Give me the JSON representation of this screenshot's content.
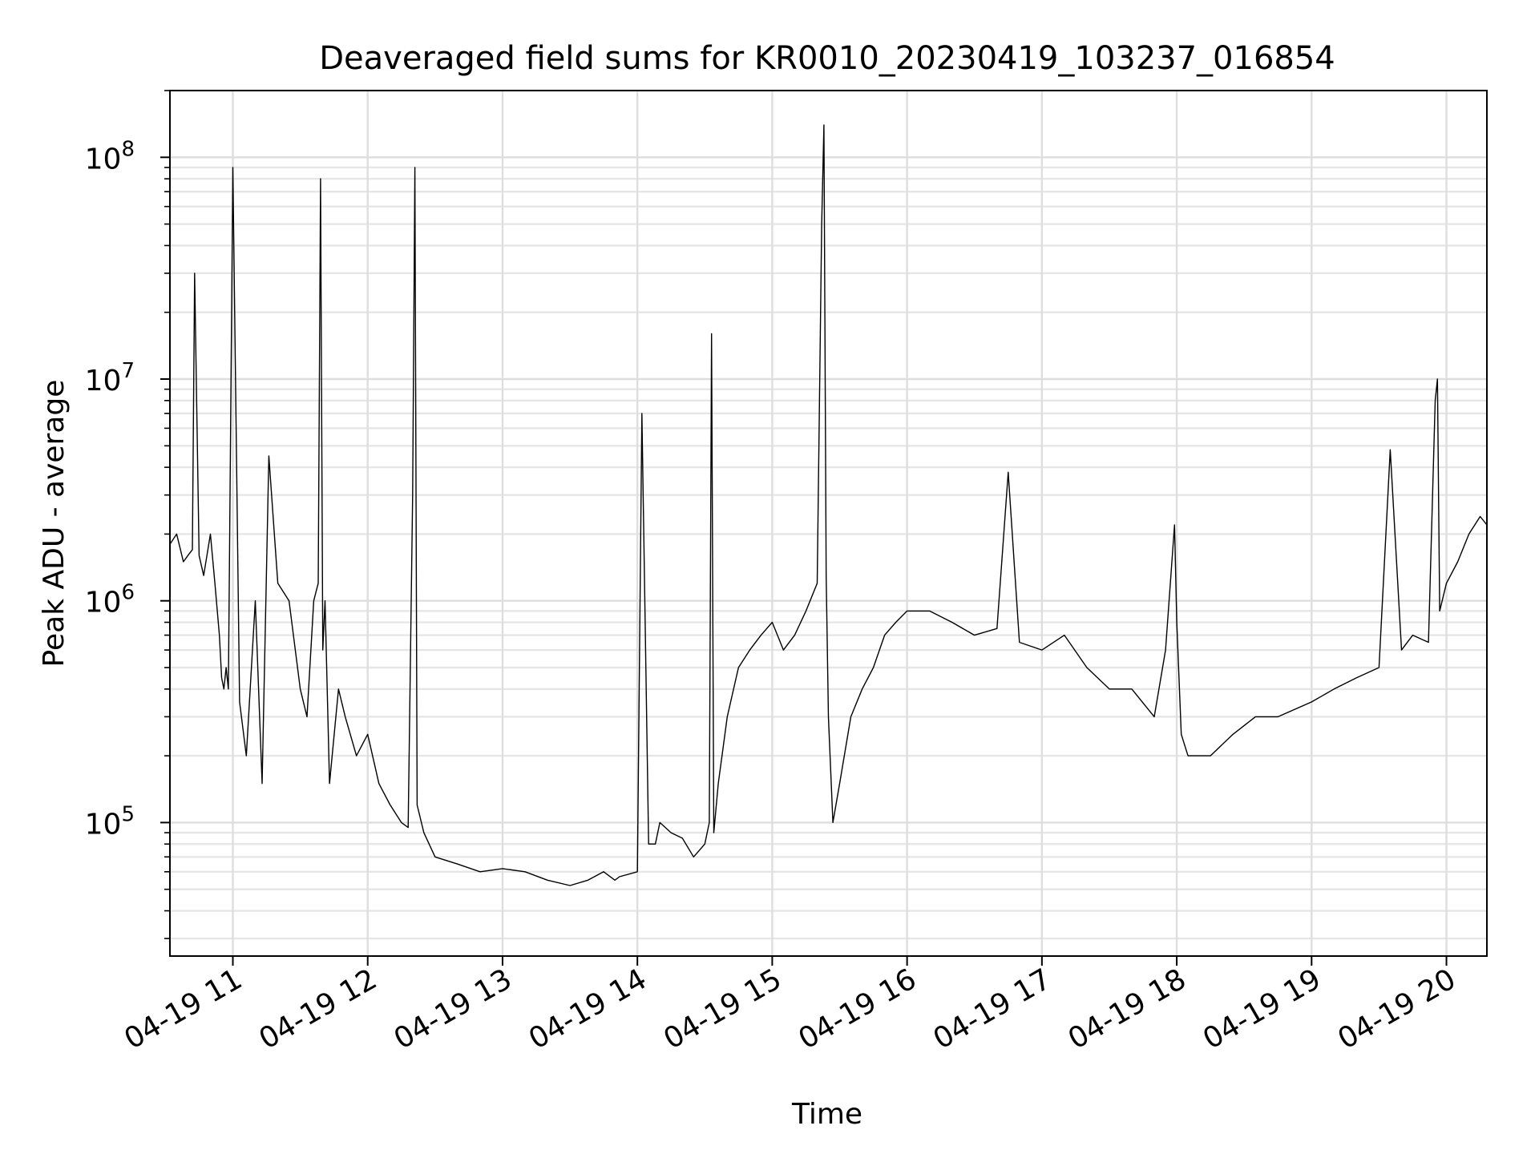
{
  "chart_data": {
    "type": "line",
    "title": "Deaveraged field sums for KR0010_20230419_103237_016854",
    "xlabel": "Time",
    "ylabel": "Peak ADU - average",
    "yscale": "log",
    "ylim": [
      25000,
      200000000
    ],
    "xlim": [
      "04-19 10:32",
      "04-19 20:18"
    ],
    "grid": true,
    "line_color": "#000000",
    "y_ticks": [
      {
        "base": "10",
        "exp": "5",
        "value": 100000
      },
      {
        "base": "10",
        "exp": "6",
        "value": 1000000
      },
      {
        "base": "10",
        "exp": "7",
        "value": 10000000
      },
      {
        "base": "10",
        "exp": "8",
        "value": 100000000
      }
    ],
    "x_ticks": [
      {
        "label": "04-19 11",
        "hour": 11
      },
      {
        "label": "04-19 12",
        "hour": 12
      },
      {
        "label": "04-19 13",
        "hour": 13
      },
      {
        "label": "04-19 14",
        "hour": 14
      },
      {
        "label": "04-19 15",
        "hour": 15
      },
      {
        "label": "04-19 16",
        "hour": 16
      },
      {
        "label": "04-19 17",
        "hour": 17
      },
      {
        "label": "04-19 18",
        "hour": 18
      },
      {
        "label": "04-19 19",
        "hour": 19
      },
      {
        "label": "04-19 20",
        "hour": 20
      }
    ],
    "series": [
      {
        "x": [
          "10:32",
          "10:35",
          "10:38",
          "10:40",
          "10:42",
          "10:43",
          "10:45",
          "10:47",
          "10:50",
          "10:52",
          "10:54",
          "10:55",
          "10:56",
          "10:57",
          "10:58",
          "11:00",
          "11:03",
          "11:06",
          "11:10",
          "11:13",
          "11:16",
          "11:20",
          "11:25",
          "11:30",
          "11:33",
          "11:36",
          "11:38",
          "11:39",
          "11:40",
          "11:41",
          "11:43",
          "11:47",
          "11:50",
          "11:55",
          "12:00",
          "12:05",
          "12:10",
          "12:15",
          "12:18",
          "12:20",
          "12:21",
          "12:22",
          "12:25",
          "12:30",
          "12:40",
          "12:50",
          "13:00",
          "13:10",
          "13:20",
          "13:30",
          "13:38",
          "13:45",
          "13:50",
          "13:52",
          "14:00",
          "14:02",
          "14:05",
          "14:08",
          "14:10",
          "14:15",
          "14:20",
          "14:25",
          "14:30",
          "14:32",
          "14:33",
          "14:34",
          "14:36",
          "14:40",
          "14:45",
          "14:50",
          "14:55",
          "15:00",
          "15:05",
          "15:10",
          "15:15",
          "15:20",
          "15:22",
          "15:23",
          "15:24",
          "15:25",
          "15:27",
          "15:30",
          "15:35",
          "15:40",
          "15:45",
          "15:50",
          "15:55",
          "16:00",
          "16:10",
          "16:20",
          "16:30",
          "16:40",
          "16:45",
          "16:50",
          "17:00",
          "17:10",
          "17:20",
          "17:30",
          "17:40",
          "17:50",
          "17:55",
          "17:59",
          "18:00",
          "18:02",
          "18:05",
          "18:08",
          "18:15",
          "18:25",
          "18:35",
          "18:45",
          "19:00",
          "19:10",
          "19:20",
          "19:30",
          "19:35",
          "19:40",
          "19:45",
          "19:52",
          "19:55",
          "19:56",
          "19:57",
          "20:00",
          "20:05",
          "20:10",
          "20:15",
          "20:18"
        ],
        "y": [
          1800000,
          2000000,
          1500000,
          1600000,
          1700000,
          30000000,
          1600000,
          1300000,
          2000000,
          1200000,
          700000,
          450000,
          400000,
          500000,
          400000,
          90000000,
          350000,
          200000,
          1000000,
          150000,
          4500000,
          1200000,
          1000000,
          400000,
          300000,
          1000000,
          1200000,
          80000000,
          600000,
          1000000,
          150000,
          400000,
          300000,
          200000,
          250000,
          150000,
          120000,
          100000,
          95000,
          3000000,
          90000000,
          120000,
          90000,
          70000,
          65000,
          60000,
          62000,
          60000,
          55000,
          52000,
          55000,
          60000,
          55000,
          57000,
          60000,
          7000000,
          80000,
          80000,
          100000,
          90000,
          85000,
          70000,
          80000,
          100000,
          16000000,
          90000,
          150000,
          300000,
          500000,
          600000,
          700000,
          800000,
          600000,
          700000,
          900000,
          1200000,
          50000000,
          140000000,
          1300000,
          300000,
          100000,
          150000,
          300000,
          400000,
          500000,
          700000,
          800000,
          900000,
          900000,
          800000,
          700000,
          750000,
          3800000,
          650000,
          600000,
          700000,
          500000,
          400000,
          400000,
          300000,
          600000,
          2200000,
          800000,
          250000,
          200000,
          200000,
          200000,
          250000,
          300000,
          300000,
          350000,
          400000,
          450000,
          500000,
          4800000,
          600000,
          700000,
          650000,
          8000000,
          10000000,
          900000,
          1200000,
          1500000,
          2000000,
          2400000,
          2200000
        ]
      }
    ]
  }
}
